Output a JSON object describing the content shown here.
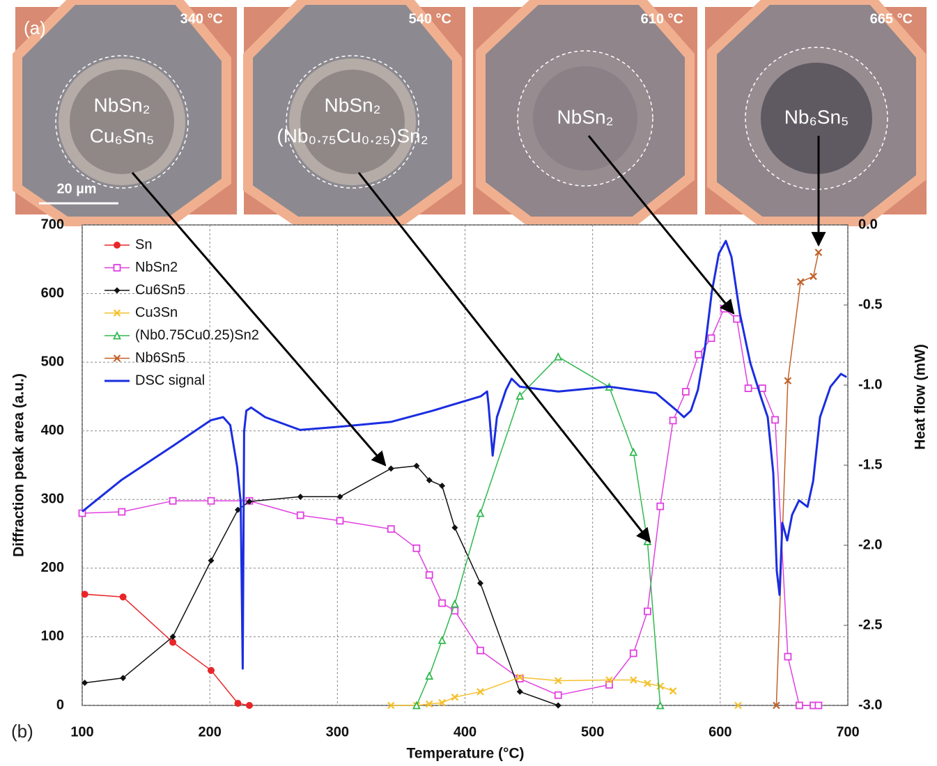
{
  "panel_a": {
    "label": "(a)",
    "scale_bar": "20 µm",
    "images": [
      {
        "temperature": "340 °C",
        "phases": [
          "NbSn₂",
          "Cu₆Sn₅"
        ]
      },
      {
        "temperature": "540 °C",
        "phases": [
          "NbSn₂",
          "(Nb₀.₇₅Cu₀.₂₅)Sn₂"
        ]
      },
      {
        "temperature": "610 °C",
        "phases": [
          "NbSn₂"
        ]
      },
      {
        "temperature": "665 °C",
        "phases": [
          "Nb₆Sn₅"
        ]
      }
    ]
  },
  "chart_data": {
    "type": "line",
    "panel_label": "(b)",
    "x_label": "Temperature (°C)",
    "y_label": "Diffraction peak area (a.u.)",
    "y2_label": "Heat flow (mW)",
    "xlim": [
      100,
      700
    ],
    "xticks": [
      100,
      200,
      300,
      400,
      500,
      600,
      700
    ],
    "ylim": [
      0,
      700
    ],
    "yticks": [
      0,
      100,
      200,
      300,
      400,
      500,
      600,
      700
    ],
    "y2lim": [
      -3,
      0
    ],
    "y2ticks": [
      {
        "value": 0,
        "label": "0.0"
      },
      -0.5,
      {
        "value": -1,
        "label": "-1.0"
      },
      -1.5,
      {
        "value": -2,
        "label": "-2.0"
      },
      -2.5,
      {
        "value": -3,
        "label": "-3.0"
      }
    ],
    "grid": true,
    "legend": "upper left",
    "series": [
      {
        "name": "Sn",
        "color": "#e8262a",
        "marker": "circle",
        "x": [
          102,
          132,
          171,
          201,
          222,
          231
        ],
        "values": [
          162,
          158,
          92,
          51,
          3,
          0
        ]
      },
      {
        "name": "NbSn2",
        "color": "#e040e0",
        "marker": "square",
        "x": [
          100,
          131,
          171,
          201,
          231,
          271,
          302,
          342,
          362,
          372,
          382,
          392,
          412,
          443,
          473,
          513,
          532,
          543,
          553,
          563,
          573,
          583,
          593,
          603,
          613,
          622,
          633,
          643,
          653,
          662,
          673,
          677
        ],
        "values": [
          280,
          282,
          298,
          298,
          298,
          277,
          269,
          257,
          229,
          190,
          149,
          138,
          80,
          39,
          15,
          30,
          76,
          137,
          290,
          415,
          457,
          511,
          535,
          578,
          563,
          462,
          462,
          416,
          71,
          0,
          0,
          0
        ]
      },
      {
        "name": "Cu6Sn5",
        "color": "#111111",
        "marker": "diamond",
        "x": [
          102,
          132,
          171,
          201,
          222,
          231,
          271,
          302,
          342,
          362,
          372,
          382,
          392,
          412,
          443,
          473
        ],
        "values": [
          33,
          40,
          100,
          211,
          285,
          297,
          304,
          304,
          345,
          349,
          328,
          320,
          259,
          178,
          20,
          0
        ]
      },
      {
        "name": "Cu3Sn",
        "color": "#f5c02a",
        "marker": "x",
        "x": [
          342,
          362,
          372,
          382,
          392,
          412,
          443,
          473,
          513,
          532,
          543,
          553,
          563,
          null,
          614
        ],
        "values": [
          0,
          0,
          2,
          4,
          12,
          20,
          41,
          36,
          37,
          37,
          32,
          28,
          21,
          null,
          0
        ]
      },
      {
        "name": "(Nb0.75Cu0.25)Sn2",
        "color": "#2fb84f",
        "marker": "triangle",
        "x": [
          362,
          372,
          382,
          392,
          412,
          443,
          473,
          513,
          532,
          543,
          553
        ],
        "values": [
          0,
          43,
          95,
          148,
          280,
          451,
          508,
          464,
          369,
          239,
          0
        ]
      },
      {
        "name": "Nb6Sn5",
        "color": "#c0622a",
        "marker": "x",
        "x": [
          644,
          653,
          663,
          673,
          677
        ],
        "values": [
          0,
          473,
          617,
          625,
          660
        ]
      },
      {
        "name": "DSC signal",
        "color": "#1a2de0",
        "marker": "none",
        "axis": "y2",
        "x": [
          100,
          131.2,
          171.1,
          200.7,
          210.5,
          216,
          221.4,
          224.2,
          225.8,
          226.9,
          228.6,
          232.4,
          243.3,
          270.7,
          301.9,
          341.8,
          374.6,
          412.4,
          417.3,
          418.4,
          421.7,
          425,
          432.1,
          436.5,
          443,
          473.1,
          513,
          549.7,
          566.1,
          571.6,
          577,
          582.5,
          588,
          593.4,
          598.9,
          604.4,
          608.8,
          615.3,
          623.5,
          631.7,
          637.2,
          641.6,
          644.3,
          646.5,
          648.7,
          652.5,
          656.3,
          661.8,
          668.4,
          672.8,
          678.2,
          686.4,
          694.6,
          699
        ],
        "values": [
          -1.79,
          -1.59,
          -1.38,
          -1.22,
          -1.2,
          -1.25,
          -1.51,
          -1.73,
          -2.77,
          -1.29,
          -1.16,
          -1.14,
          -1.2,
          -1.28,
          -1.26,
          -1.23,
          -1.16,
          -1.07,
          -1.04,
          -1.12,
          -1.44,
          -1.2,
          -1.03,
          -0.96,
          -1.01,
          -1.04,
          -1.01,
          -1.05,
          -1.16,
          -1.2,
          -1.16,
          -1.03,
          -0.77,
          -0.42,
          -0.18,
          -0.1,
          -0.2,
          -0.55,
          -0.86,
          -1.07,
          -1.2,
          -1.55,
          -2.16,
          -2.31,
          -1.86,
          -1.97,
          -1.81,
          -1.72,
          -1.76,
          -1.6,
          -1.2,
          -1.01,
          -0.93,
          -0.95
        ]
      }
    ]
  }
}
